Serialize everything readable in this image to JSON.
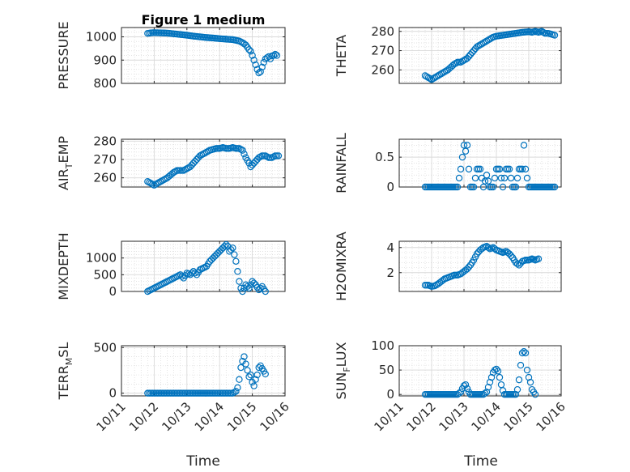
{
  "figure": {
    "title": "Figure 1 medium",
    "xlabel": "Time"
  },
  "colors": {
    "marker": "#0072BD",
    "axis": "#262626",
    "grid": "#d9d9d9"
  },
  "x_ticks": [
    "10/11",
    "10/12",
    "10/13",
    "10/14",
    "10/15",
    "10/16"
  ],
  "chart_data": [
    {
      "type": "scatter",
      "ylabel": "PRESSURE",
      "ylabel_sub": "",
      "ylabel_rest": "",
      "ylim": [
        800,
        1040
      ],
      "yticks": [
        800,
        900,
        1000
      ],
      "grid": true,
      "points": [
        [
          0.8,
          1015
        ],
        [
          0.9,
          1017
        ],
        [
          1.0,
          1018
        ],
        [
          1.2,
          1017
        ],
        [
          1.4,
          1016
        ],
        [
          1.6,
          1013
        ],
        [
          1.8,
          1010
        ],
        [
          2.0,
          1007
        ],
        [
          2.2,
          1003
        ],
        [
          2.4,
          1000
        ],
        [
          2.6,
          997
        ],
        [
          2.8,
          995
        ],
        [
          3.0,
          992
        ],
        [
          3.2,
          990
        ],
        [
          3.4,
          988
        ],
        [
          3.5,
          985
        ],
        [
          3.6,
          982
        ],
        [
          3.7,
          975
        ],
        [
          3.8,
          965
        ],
        [
          3.85,
          955
        ],
        [
          3.9,
          945
        ],
        [
          3.95,
          938
        ],
        [
          4.0,
          920
        ],
        [
          4.05,
          900
        ],
        [
          4.1,
          880
        ],
        [
          4.15,
          860
        ],
        [
          4.2,
          845
        ],
        [
          4.25,
          850
        ],
        [
          4.3,
          870
        ],
        [
          4.35,
          890
        ],
        [
          4.4,
          905
        ],
        [
          4.45,
          910
        ],
        [
          4.5,
          915
        ],
        [
          4.55,
          905
        ],
        [
          4.6,
          918
        ],
        [
          4.65,
          920
        ],
        [
          4.7,
          925
        ],
        [
          4.75,
          920
        ]
      ]
    },
    {
      "type": "scatter",
      "ylabel": "THETA",
      "ylabel_sub": "",
      "ylabel_rest": "",
      "ylim": [
        253,
        282
      ],
      "yticks": [
        260,
        270,
        280
      ],
      "grid": true,
      "points": [
        [
          0.8,
          257
        ],
        [
          0.9,
          256
        ],
        [
          1.0,
          255
        ],
        [
          1.1,
          256
        ],
        [
          1.2,
          257
        ],
        [
          1.3,
          258
        ],
        [
          1.4,
          259
        ],
        [
          1.5,
          260
        ],
        [
          1.6,
          261.5
        ],
        [
          1.7,
          263
        ],
        [
          1.8,
          264
        ],
        [
          1.9,
          264
        ],
        [
          2.0,
          265
        ],
        [
          2.1,
          266
        ],
        [
          2.2,
          268
        ],
        [
          2.3,
          270
        ],
        [
          2.4,
          272
        ],
        [
          2.5,
          273
        ],
        [
          2.6,
          274
        ],
        [
          2.7,
          275
        ],
        [
          2.8,
          276
        ],
        [
          2.9,
          277
        ],
        [
          3.0,
          277.5
        ],
        [
          3.2,
          278
        ],
        [
          3.4,
          278.5
        ],
        [
          3.6,
          279
        ],
        [
          3.8,
          279.5
        ],
        [
          4.0,
          279.8
        ],
        [
          4.1,
          279.5
        ],
        [
          4.2,
          280
        ],
        [
          4.3,
          279.5
        ],
        [
          4.4,
          280
        ],
        [
          4.5,
          279
        ],
        [
          4.6,
          279
        ],
        [
          4.7,
          278.5
        ],
        [
          4.8,
          278
        ]
      ]
    },
    {
      "type": "scatter",
      "ylabel": "AIR",
      "ylabel_sub": "T",
      "ylabel_rest": "EMP",
      "ylim": [
        255,
        281
      ],
      "yticks": [
        260,
        270,
        280
      ],
      "grid": true,
      "points": [
        [
          0.8,
          258
        ],
        [
          0.9,
          257
        ],
        [
          1.0,
          256
        ],
        [
          1.1,
          257
        ],
        [
          1.2,
          258
        ],
        [
          1.3,
          259
        ],
        [
          1.4,
          260
        ],
        [
          1.5,
          261.5
        ],
        [
          1.6,
          263
        ],
        [
          1.7,
          264
        ],
        [
          1.8,
          264
        ],
        [
          1.9,
          264
        ],
        [
          2.0,
          265
        ],
        [
          2.1,
          266
        ],
        [
          2.2,
          268
        ],
        [
          2.3,
          270
        ],
        [
          2.4,
          272
        ],
        [
          2.5,
          273
        ],
        [
          2.6,
          274
        ],
        [
          2.7,
          275
        ],
        [
          2.8,
          275.5
        ],
        [
          2.9,
          276
        ],
        [
          3.0,
          276
        ],
        [
          3.1,
          276.5
        ],
        [
          3.2,
          276
        ],
        [
          3.3,
          276
        ],
        [
          3.4,
          276.5
        ],
        [
          3.5,
          276
        ],
        [
          3.6,
          276
        ],
        [
          3.7,
          275
        ],
        [
          3.8,
          271
        ],
        [
          3.9,
          268
        ],
        [
          3.95,
          266
        ],
        [
          4.0,
          267
        ],
        [
          4.1,
          269
        ],
        [
          4.2,
          271
        ],
        [
          4.3,
          272
        ],
        [
          4.4,
          272
        ],
        [
          4.5,
          271
        ],
        [
          4.6,
          271
        ],
        [
          4.7,
          272
        ],
        [
          4.8,
          272
        ]
      ]
    },
    {
      "type": "scatter",
      "ylabel": "RAINFALL",
      "ylabel_sub": "",
      "ylabel_rest": "",
      "ylim": [
        0,
        0.8
      ],
      "yticks": [
        0,
        0.5
      ],
      "grid": true,
      "points": [
        [
          0.8,
          0
        ],
        [
          1.0,
          0
        ],
        [
          1.2,
          0
        ],
        [
          1.4,
          0
        ],
        [
          1.6,
          0
        ],
        [
          1.8,
          0
        ],
        [
          1.9,
          0.3
        ],
        [
          2.0,
          0.7
        ],
        [
          2.05,
          0.6
        ],
        [
          2.1,
          0.7
        ],
        [
          2.15,
          0.3
        ],
        [
          2.2,
          0
        ],
        [
          2.3,
          0
        ],
        [
          2.4,
          0.3
        ],
        [
          2.5,
          0.3
        ],
        [
          2.6,
          0
        ],
        [
          2.7,
          0.2
        ],
        [
          2.8,
          0
        ],
        [
          2.9,
          0
        ],
        [
          3.0,
          0.3
        ],
        [
          3.1,
          0.3
        ],
        [
          3.2,
          0
        ],
        [
          3.3,
          0.3
        ],
        [
          3.4,
          0.3
        ],
        [
          3.5,
          0
        ],
        [
          3.6,
          0
        ],
        [
          3.7,
          0.3
        ],
        [
          3.8,
          0.3
        ],
        [
          3.85,
          0.7
        ],
        [
          3.9,
          0.3
        ],
        [
          4.0,
          0
        ],
        [
          4.1,
          0
        ],
        [
          4.2,
          0
        ],
        [
          4.4,
          0
        ],
        [
          4.6,
          0
        ],
        [
          4.8,
          0
        ]
      ]
    },
    {
      "type": "scatter",
      "ylabel": "MIXDEPTH",
      "ylabel_sub": "",
      "ylabel_rest": "",
      "ylim": [
        0,
        1500
      ],
      "yticks": [
        0,
        500,
        1000
      ],
      "grid": true,
      "points": [
        [
          0.8,
          0
        ],
        [
          0.9,
          50
        ],
        [
          1.0,
          100
        ],
        [
          1.1,
          150
        ],
        [
          1.2,
          200
        ],
        [
          1.3,
          250
        ],
        [
          1.4,
          300
        ],
        [
          1.5,
          350
        ],
        [
          1.6,
          400
        ],
        [
          1.7,
          450
        ],
        [
          1.8,
          500
        ],
        [
          1.9,
          400
        ],
        [
          2.0,
          550
        ],
        [
          2.1,
          500
        ],
        [
          2.2,
          600
        ],
        [
          2.3,
          500
        ],
        [
          2.4,
          650
        ],
        [
          2.5,
          700
        ],
        [
          2.6,
          750
        ],
        [
          2.7,
          900
        ],
        [
          2.8,
          1000
        ],
        [
          2.9,
          1100
        ],
        [
          3.0,
          1200
        ],
        [
          3.1,
          1300
        ],
        [
          3.2,
          1400
        ],
        [
          3.25,
          1350
        ],
        [
          3.3,
          1200
        ],
        [
          3.4,
          1300
        ],
        [
          3.45,
          1100
        ],
        [
          3.5,
          900
        ],
        [
          3.55,
          600
        ],
        [
          3.6,
          300
        ],
        [
          3.65,
          100
        ],
        [
          3.7,
          0
        ],
        [
          3.8,
          200
        ],
        [
          3.9,
          100
        ],
        [
          4.0,
          300
        ],
        [
          4.1,
          200
        ],
        [
          4.2,
          50
        ],
        [
          4.3,
          150
        ],
        [
          4.4,
          0
        ]
      ]
    },
    {
      "type": "scatter",
      "ylabel": "H2OMIXRA",
      "ylabel_sub": "",
      "ylabel_rest": "",
      "ylim": [
        0.5,
        4.5
      ],
      "yticks": [
        2,
        4
      ],
      "grid": true,
      "points": [
        [
          0.8,
          1.0
        ],
        [
          0.9,
          1.0
        ],
        [
          1.0,
          0.9
        ],
        [
          1.1,
          0.95
        ],
        [
          1.2,
          1.1
        ],
        [
          1.3,
          1.3
        ],
        [
          1.4,
          1.5
        ],
        [
          1.5,
          1.6
        ],
        [
          1.6,
          1.7
        ],
        [
          1.7,
          1.8
        ],
        [
          1.8,
          1.8
        ],
        [
          1.9,
          1.9
        ],
        [
          2.0,
          2.1
        ],
        [
          2.1,
          2.3
        ],
        [
          2.2,
          2.6
        ],
        [
          2.3,
          3.0
        ],
        [
          2.4,
          3.5
        ],
        [
          2.5,
          3.8
        ],
        [
          2.6,
          4.0
        ],
        [
          2.7,
          4.1
        ],
        [
          2.8,
          3.9
        ],
        [
          2.9,
          4.0
        ],
        [
          3.0,
          3.8
        ],
        [
          3.1,
          3.7
        ],
        [
          3.2,
          3.6
        ],
        [
          3.3,
          3.7
        ],
        [
          3.4,
          3.5
        ],
        [
          3.5,
          3.2
        ],
        [
          3.6,
          2.8
        ],
        [
          3.7,
          2.6
        ],
        [
          3.8,
          2.9
        ],
        [
          3.9,
          3.0
        ],
        [
          4.0,
          3.0
        ],
        [
          4.1,
          3.1
        ],
        [
          4.2,
          3.0
        ],
        [
          4.3,
          3.1
        ]
      ]
    },
    {
      "type": "scatter",
      "ylabel": "TERR",
      "ylabel_sub": "M",
      "ylabel_rest": "SL",
      "ylim": [
        -30,
        520
      ],
      "yticks": [
        0,
        500
      ],
      "grid": true,
      "points": [
        [
          0.8,
          0
        ],
        [
          1.0,
          0
        ],
        [
          1.2,
          0
        ],
        [
          1.4,
          0
        ],
        [
          1.6,
          0
        ],
        [
          1.8,
          0
        ],
        [
          2.0,
          0
        ],
        [
          2.2,
          0
        ],
        [
          2.4,
          0
        ],
        [
          2.6,
          0
        ],
        [
          2.8,
          0
        ],
        [
          3.0,
          0
        ],
        [
          3.2,
          0
        ],
        [
          3.4,
          0
        ],
        [
          3.5,
          20
        ],
        [
          3.55,
          60
        ],
        [
          3.6,
          150
        ],
        [
          3.65,
          280
        ],
        [
          3.7,
          350
        ],
        [
          3.75,
          400
        ],
        [
          3.8,
          320
        ],
        [
          3.85,
          250
        ],
        [
          3.9,
          180
        ],
        [
          3.95,
          200
        ],
        [
          4.0,
          120
        ],
        [
          4.05,
          80
        ],
        [
          4.1,
          150
        ],
        [
          4.15,
          200
        ],
        [
          4.2,
          280
        ],
        [
          4.25,
          300
        ],
        [
          4.3,
          270
        ],
        [
          4.35,
          240
        ],
        [
          4.4,
          210
        ]
      ]
    },
    {
      "type": "scatter",
      "ylabel": "SUN",
      "ylabel_sub": "F",
      "ylabel_rest": "LUX",
      "ylim": [
        -3,
        100
      ],
      "yticks": [
        0,
        50,
        100
      ],
      "grid": true,
      "points": [
        [
          0.8,
          0
        ],
        [
          1.0,
          0
        ],
        [
          1.2,
          0
        ],
        [
          1.4,
          0
        ],
        [
          1.6,
          0
        ],
        [
          1.8,
          0
        ],
        [
          1.9,
          5
        ],
        [
          1.95,
          12
        ],
        [
          2.0,
          18
        ],
        [
          2.05,
          20
        ],
        [
          2.1,
          12
        ],
        [
          2.15,
          5
        ],
        [
          2.2,
          0
        ],
        [
          2.4,
          0
        ],
        [
          2.6,
          0
        ],
        [
          2.7,
          5
        ],
        [
          2.75,
          15
        ],
        [
          2.8,
          25
        ],
        [
          2.85,
          35
        ],
        [
          2.9,
          45
        ],
        [
          2.95,
          50
        ],
        [
          3.0,
          52
        ],
        [
          3.05,
          48
        ],
        [
          3.1,
          35
        ],
        [
          3.15,
          20
        ],
        [
          3.2,
          8
        ],
        [
          3.25,
          0
        ],
        [
          3.4,
          0
        ],
        [
          3.6,
          0
        ],
        [
          3.65,
          10
        ],
        [
          3.7,
          30
        ],
        [
          3.75,
          60
        ],
        [
          3.8,
          85
        ],
        [
          3.85,
          88
        ],
        [
          3.9,
          85
        ],
        [
          3.95,
          50
        ],
        [
          4.0,
          35
        ],
        [
          4.05,
          25
        ],
        [
          4.1,
          10
        ],
        [
          4.15,
          5
        ],
        [
          4.2,
          0
        ]
      ]
    }
  ]
}
